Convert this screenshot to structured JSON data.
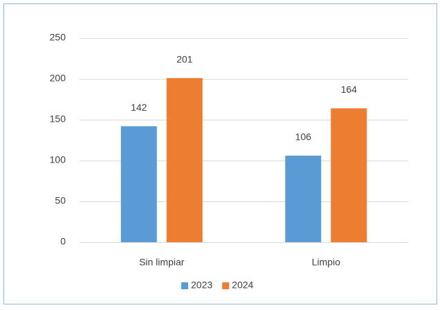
{
  "chart_data": {
    "type": "bar",
    "categories": [
      "Sin limpiar",
      "Limpio"
    ],
    "series": [
      {
        "name": "2023",
        "color": "#5b9bd5",
        "values": [
          142,
          106
        ]
      },
      {
        "name": "2024",
        "color": "#ed7d31",
        "values": [
          201,
          164
        ]
      }
    ],
    "ylim": [
      0,
      250
    ],
    "yticks": [
      0,
      50,
      100,
      150,
      200,
      250
    ],
    "grid": true,
    "legend": "bottom",
    "data_labels": true
  }
}
